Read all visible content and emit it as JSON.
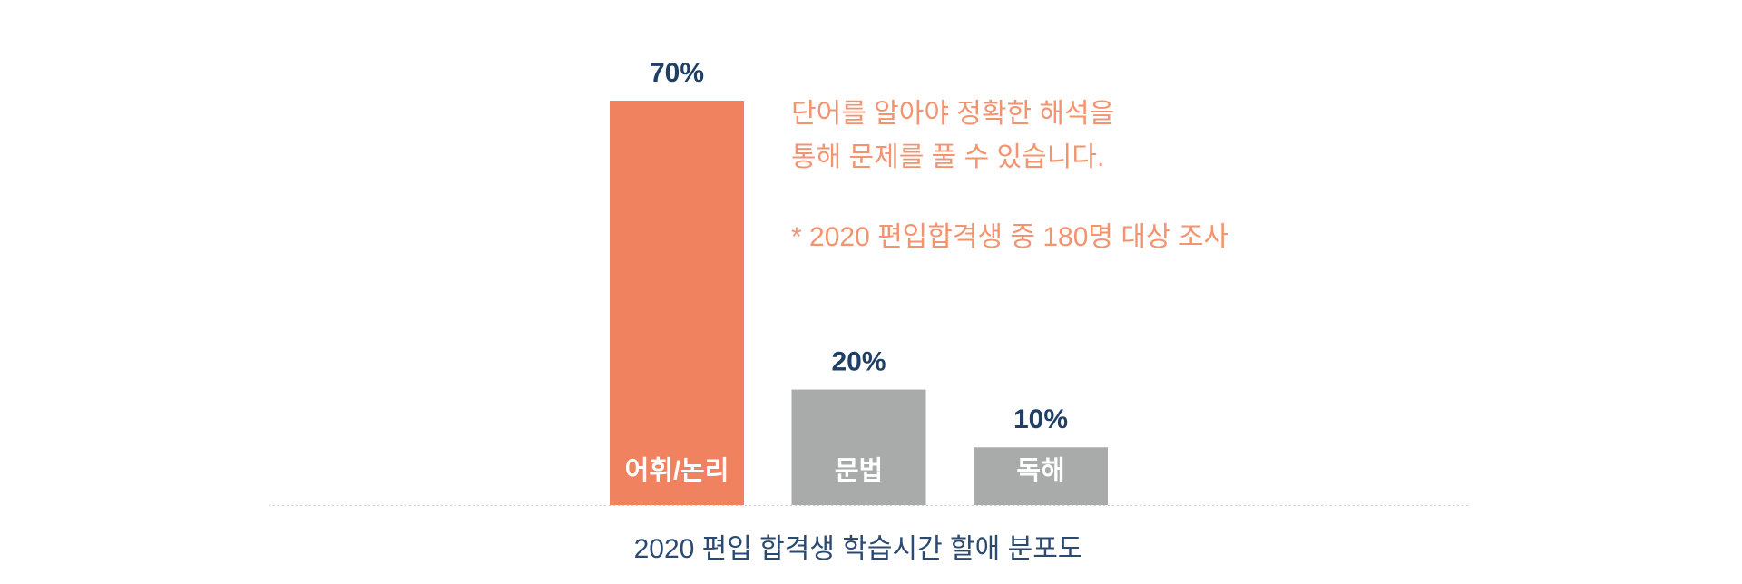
{
  "chart_data": {
    "type": "bar",
    "title": "2020 편입 합격생 학습시간 할애 분포도",
    "categories": [
      "어휘/논리",
      "문법",
      "독해"
    ],
    "values": [
      70,
      20,
      10
    ],
    "value_labels": [
      "70%",
      "20%",
      "10%"
    ],
    "colors": [
      "#f08260",
      "#a9aaaa",
      "#a9aaaa"
    ],
    "annotations": [
      "단어를 알아야 정확한 해석을",
      "통해 문제를 풀 수 있습니다.",
      "* 2020 편입합격생 중 180명 대상 조사"
    ]
  }
}
